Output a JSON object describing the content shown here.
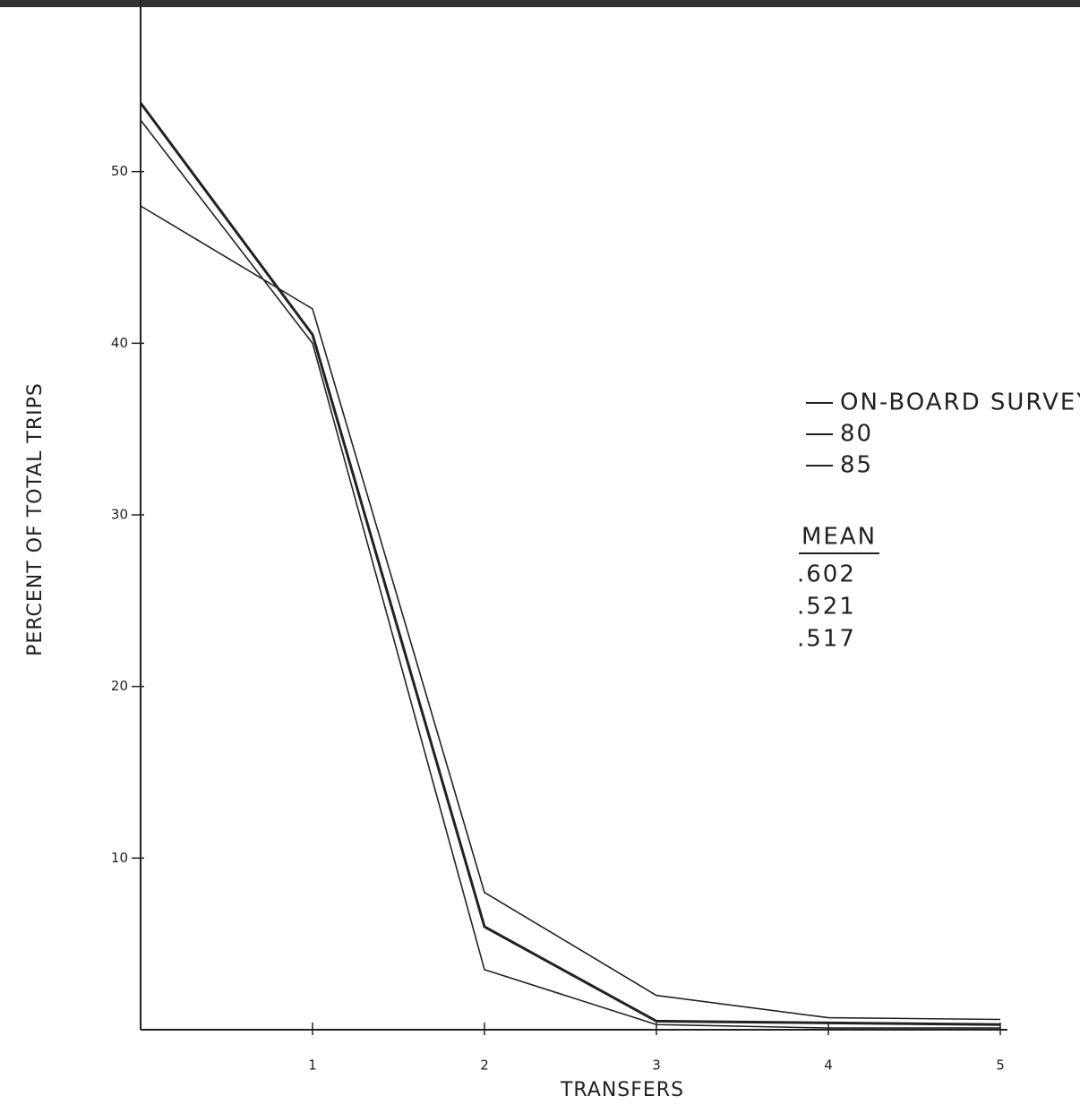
{
  "chart_data": {
    "type": "line",
    "xlabel": "TRANSFERS",
    "ylabel": "PERCENT OF TOTAL TRIPS",
    "x": [
      0,
      1,
      2,
      3,
      4,
      5
    ],
    "series": [
      {
        "name": "ON-BOARD SURVEY",
        "color": "#222222",
        "values": [
          48,
          42,
          8,
          2,
          0.7,
          0.6
        ]
      },
      {
        "name": "80",
        "color": "#222222",
        "values": [
          54,
          40.5,
          6,
          0.5,
          0.4,
          0.3
        ]
      },
      {
        "name": "85",
        "color": "#222222",
        "values": [
          53,
          40,
          3.5,
          0.3,
          0.1,
          0.1
        ]
      }
    ],
    "xlim": [
      0,
      5
    ],
    "xticks": [
      1,
      2,
      3,
      4,
      5
    ],
    "ylim": [
      0,
      60
    ],
    "yticks": [
      10,
      20,
      30,
      40,
      50
    ],
    "legend": "right",
    "mean_title": "MEAN",
    "means": [
      ".602",
      ".521",
      ".517"
    ]
  }
}
